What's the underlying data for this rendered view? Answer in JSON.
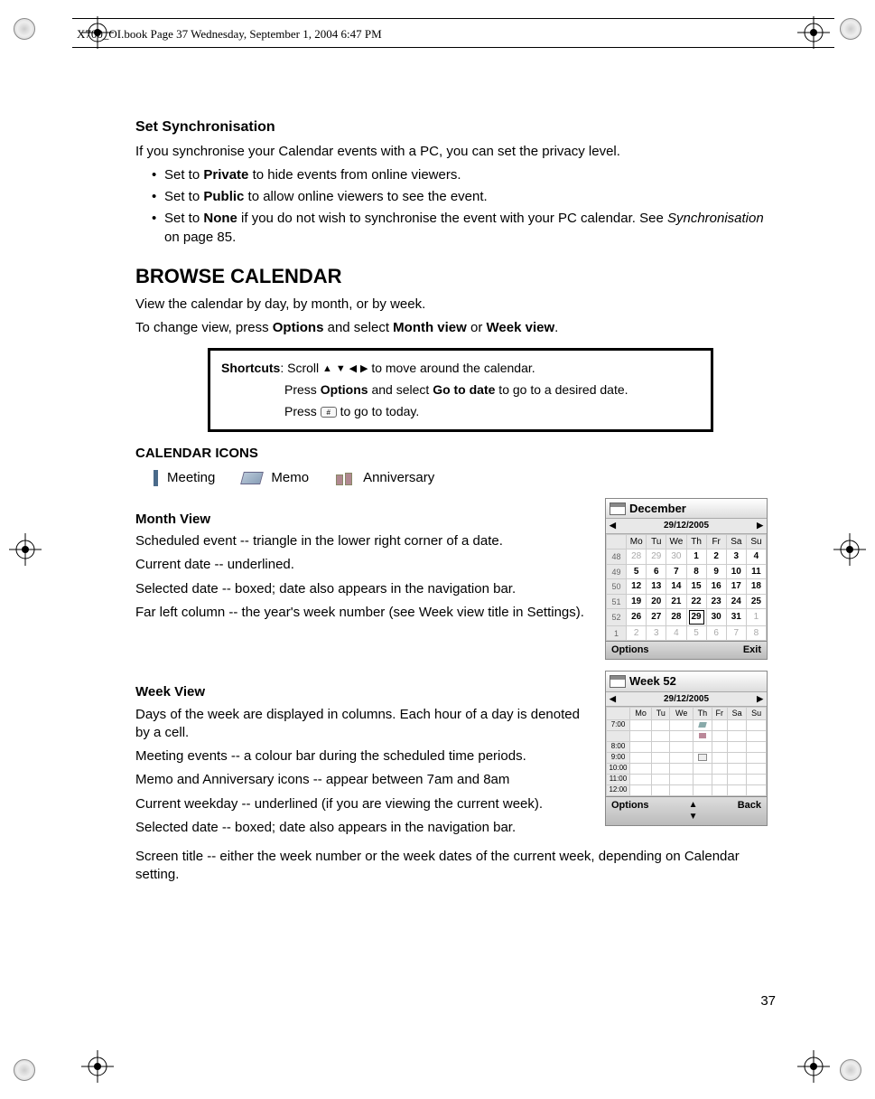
{
  "header": {
    "text": "X700_OI.book  Page 37  Wednesday, September 1, 2004  6:47 PM"
  },
  "page_number": "37",
  "section": {
    "set_sync": {
      "title": "Set Synchronisation",
      "intro": "If you synchronise your Calendar events with a PC, you can set the privacy level.",
      "bullets": {
        "b0_pre": "Set to ",
        "b0_bold": "Private",
        "b0_post": " to hide events from online viewers.",
        "b1_pre": "Set to ",
        "b1_bold": "Public",
        "b1_post": " to allow online viewers to see the event.",
        "b2_pre": "Set to ",
        "b2_bold": "None",
        "b2_post": " if you do not wish to synchronise the event with your PC calendar. See ",
        "b2_italic": "Synchronisation",
        "b2_tail": " on page 85."
      }
    },
    "browse": {
      "title": "BROWSE CALENDAR",
      "p1": "View the calendar by day, by month, or by week.",
      "p2_pre": "To change view, press ",
      "p2_b1": "Options",
      "p2_mid": " and select ",
      "p2_b2": "Month view",
      "p2_or": " or ",
      "p2_b3": "Week view",
      "p2_end": "."
    },
    "shortcuts": {
      "label": "Shortcuts",
      "l1_pre": ": Scroll ",
      "l1_post": " to move around the calendar.",
      "l2_pre": "Press ",
      "l2_b1": "Options",
      "l2_mid": " and select ",
      "l2_b2": "Go to date",
      "l2_post": " to go to a desired date.",
      "l3_pre": "Press ",
      "l3_post": " to go to today."
    },
    "icons": {
      "title": "CALENDAR ICONS",
      "meeting": "Meeting",
      "memo": "Memo",
      "anniversary": "Anniversary"
    },
    "month_view": {
      "title": "Month View",
      "p1": "Scheduled event -- triangle in the lower right corner of a date.",
      "p2": "Current date -- underlined.",
      "p3": "Selected date -- boxed; date also appears in the navigation bar.",
      "p4": "Far left column -- the year's week number (see Week view title in Settings)."
    },
    "week_view": {
      "title": "Week View",
      "p1": "Days of the week are displayed in columns. Each hour of a day is denoted by a cell.",
      "p2": "Meeting events -- a colour bar during the scheduled time periods.",
      "p3": "Memo and Anniversary icons -- appear between 7am and 8am",
      "p4": "Current weekday -- underlined (if you are viewing the current week).",
      "p5": "Selected date -- boxed; date also appears in the navigation bar.",
      "p6": "Screen title -- either the week number or the week dates of the current week, depending on Calendar setting."
    }
  },
  "month_screen": {
    "title": "December",
    "date": "29/12/2005",
    "days": [
      "Mo",
      "Tu",
      "We",
      "Th",
      "Fr",
      "Sa",
      "Su"
    ],
    "weeks": [
      "48",
      "49",
      "50",
      "51",
      "52",
      "1"
    ],
    "rows": [
      [
        {
          "v": "28",
          "dim": true
        },
        {
          "v": "29",
          "dim": true
        },
        {
          "v": "30",
          "dim": true
        },
        {
          "v": "1",
          "b": true
        },
        {
          "v": "2",
          "b": true
        },
        {
          "v": "3",
          "b": true
        },
        {
          "v": "4",
          "b": true
        }
      ],
      [
        {
          "v": "5",
          "b": true
        },
        {
          "v": "6",
          "b": true
        },
        {
          "v": "7",
          "b": true
        },
        {
          "v": "8",
          "b": true
        },
        {
          "v": "9",
          "b": true
        },
        {
          "v": "10",
          "b": true
        },
        {
          "v": "11",
          "b": true
        }
      ],
      [
        {
          "v": "12",
          "b": true
        },
        {
          "v": "13",
          "b": true
        },
        {
          "v": "14",
          "b": true
        },
        {
          "v": "15",
          "b": true
        },
        {
          "v": "16",
          "b": true
        },
        {
          "v": "17",
          "b": true
        },
        {
          "v": "18",
          "b": true
        }
      ],
      [
        {
          "v": "19",
          "b": true
        },
        {
          "v": "20",
          "b": true
        },
        {
          "v": "21",
          "b": true
        },
        {
          "v": "22",
          "b": true
        },
        {
          "v": "23",
          "b": true
        },
        {
          "v": "24",
          "b": true
        },
        {
          "v": "25",
          "b": true
        }
      ],
      [
        {
          "v": "26",
          "b": true
        },
        {
          "v": "27",
          "b": true
        },
        {
          "v": "28",
          "b": true
        },
        {
          "v": "29",
          "sel": true
        },
        {
          "v": "30",
          "b": true
        },
        {
          "v": "31",
          "b": true
        },
        {
          "v": "1",
          "dim": true
        }
      ],
      [
        {
          "v": "2",
          "dim": true
        },
        {
          "v": "3",
          "dim": true
        },
        {
          "v": "4",
          "dim": true
        },
        {
          "v": "5",
          "dim": true
        },
        {
          "v": "6",
          "dim": true
        },
        {
          "v": "7",
          "dim": true
        },
        {
          "v": "8",
          "dim": true
        }
      ]
    ],
    "footer_left": "Options",
    "footer_right": "Exit"
  },
  "week_screen": {
    "title": "Week 52",
    "date": "29/12/2005",
    "days": [
      "Mo",
      "Tu",
      "We",
      "Th",
      "Fr",
      "Sa",
      "Su"
    ],
    "hours": [
      "7:00",
      "",
      "8:00",
      "9:00",
      "10:00",
      "11:00",
      "12:00"
    ],
    "footer_left": "Options",
    "footer_right": "Back"
  }
}
